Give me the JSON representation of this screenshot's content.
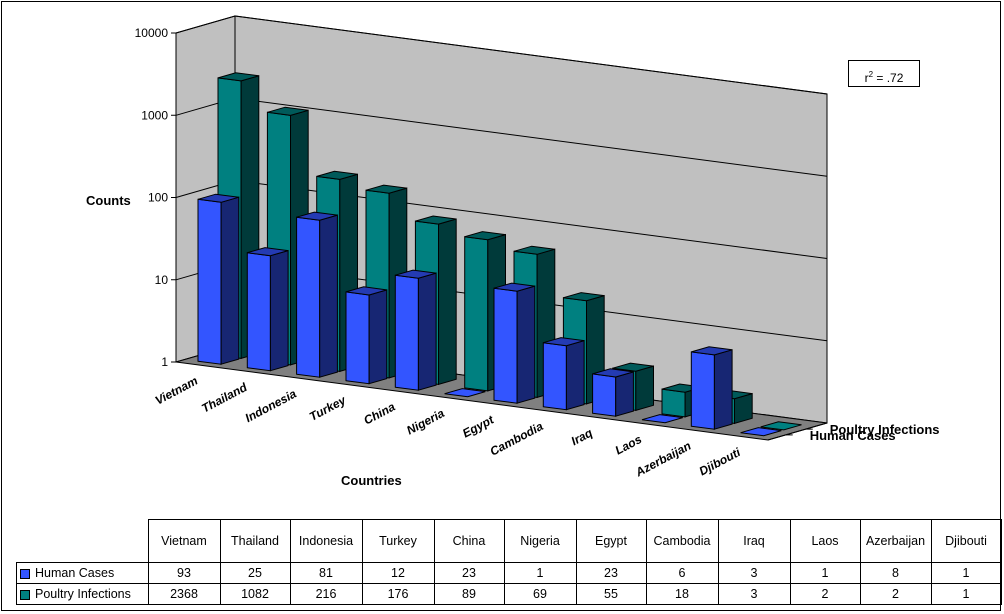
{
  "chart_data": {
    "type": "bar",
    "three_d": true,
    "yscale": "log",
    "ylim": [
      1,
      10000
    ],
    "ylabel": "Counts",
    "xlabel": "Countries",
    "yticks": [
      "1",
      "10",
      "100",
      "1000",
      "10000"
    ],
    "categories": [
      "Vietnam",
      "Thailand",
      "Indonesia",
      "Turkey",
      "China",
      "Nigeria",
      "Egypt",
      "Cambodia",
      "Iraq",
      "Laos",
      "Azerbaijan",
      "Djibouti"
    ],
    "series": [
      {
        "name": "Human Cases",
        "color": "#3355ff",
        "values": [
          93,
          25,
          81,
          12,
          23,
          1,
          23,
          6,
          3,
          1,
          8,
          1
        ]
      },
      {
        "name": "Poultry Infections",
        "color": "#008080",
        "values": [
          2368,
          1082,
          216,
          176,
          89,
          69,
          55,
          18,
          3,
          2,
          2,
          1
        ]
      }
    ],
    "annotation": {
      "prefix": "r",
      "sup": "2",
      "suffix": " = .72"
    },
    "gridlines": true,
    "data_table": true
  }
}
